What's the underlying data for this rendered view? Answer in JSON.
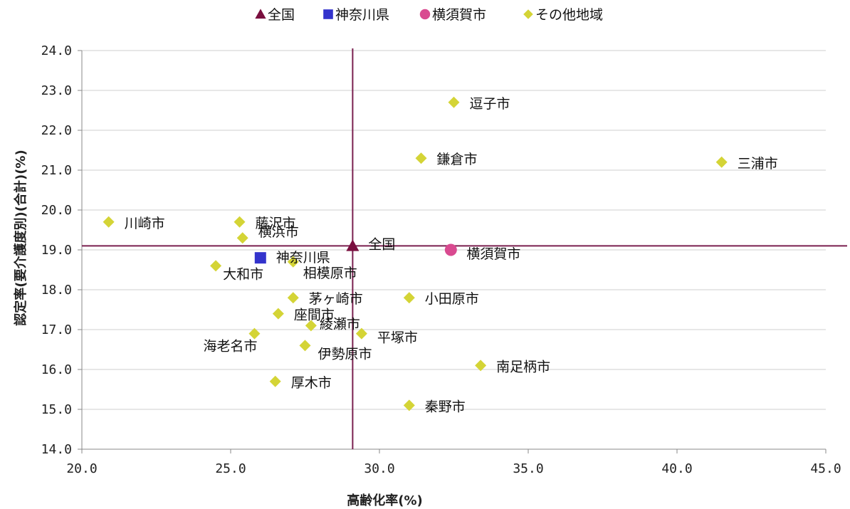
{
  "chart_data": {
    "type": "scatter",
    "xlabel": "高齢化率(%)",
    "ylabel": "認定率(要介護度別)(合計)(%)",
    "xlim": [
      20,
      45
    ],
    "ylim": [
      14,
      24
    ],
    "xticks": [
      "20.0",
      "25.0",
      "30.0",
      "35.0",
      "40.0",
      "45.0"
    ],
    "yticks": [
      "14.0",
      "15.0",
      "16.0",
      "17.0",
      "18.0",
      "19.0",
      "20.0",
      "21.0",
      "22.0",
      "23.0",
      "24.0"
    ],
    "grid": true,
    "legend_position": "top",
    "reference_lines": {
      "x": 29.1,
      "y": 19.1,
      "color": "#7a1f4f"
    },
    "series": [
      {
        "name": "全国",
        "marker": "triangle",
        "color": "#7a0f3f",
        "points": [
          {
            "label": "全国",
            "x": 29.1,
            "y": 19.1
          }
        ]
      },
      {
        "name": "神奈川県",
        "marker": "square",
        "color": "#3333cc",
        "points": [
          {
            "label": "神奈川県",
            "x": 26.0,
            "y": 18.8
          }
        ]
      },
      {
        "name": "横須賀市",
        "marker": "circle",
        "color": "#d94a90",
        "points": [
          {
            "label": "横須賀市",
            "x": 32.4,
            "y": 19.0
          }
        ]
      },
      {
        "name": "その他地域",
        "marker": "diamond",
        "color": "#d4d436",
        "points": [
          {
            "label": "逗子市",
            "x": 32.5,
            "y": 22.7
          },
          {
            "label": "鎌倉市",
            "x": 31.4,
            "y": 21.3
          },
          {
            "label": "三浦市",
            "x": 41.5,
            "y": 21.2
          },
          {
            "label": "川崎市",
            "x": 20.9,
            "y": 19.7
          },
          {
            "label": "藤沢市",
            "x": 25.3,
            "y": 19.7
          },
          {
            "label": "横浜市",
            "x": 25.4,
            "y": 19.3
          },
          {
            "label": "相模原市",
            "x": 27.1,
            "y": 18.7
          },
          {
            "label": "大和市",
            "x": 24.5,
            "y": 18.6
          },
          {
            "label": "茅ヶ崎市",
            "x": 27.1,
            "y": 17.8
          },
          {
            "label": "小田原市",
            "x": 31.0,
            "y": 17.8
          },
          {
            "label": "座間市",
            "x": 26.6,
            "y": 17.4
          },
          {
            "label": "綾瀬市",
            "x": 27.7,
            "y": 17.1
          },
          {
            "label": "平塚市",
            "x": 29.4,
            "y": 16.9
          },
          {
            "label": "海老名市",
            "x": 25.8,
            "y": 16.9
          },
          {
            "label": "伊勢原市",
            "x": 27.5,
            "y": 16.6
          },
          {
            "label": "南足柄市",
            "x": 33.4,
            "y": 16.1
          },
          {
            "label": "厚木市",
            "x": 26.5,
            "y": 15.7
          },
          {
            "label": "秦野市",
            "x": 31.0,
            "y": 15.1
          }
        ]
      }
    ]
  }
}
